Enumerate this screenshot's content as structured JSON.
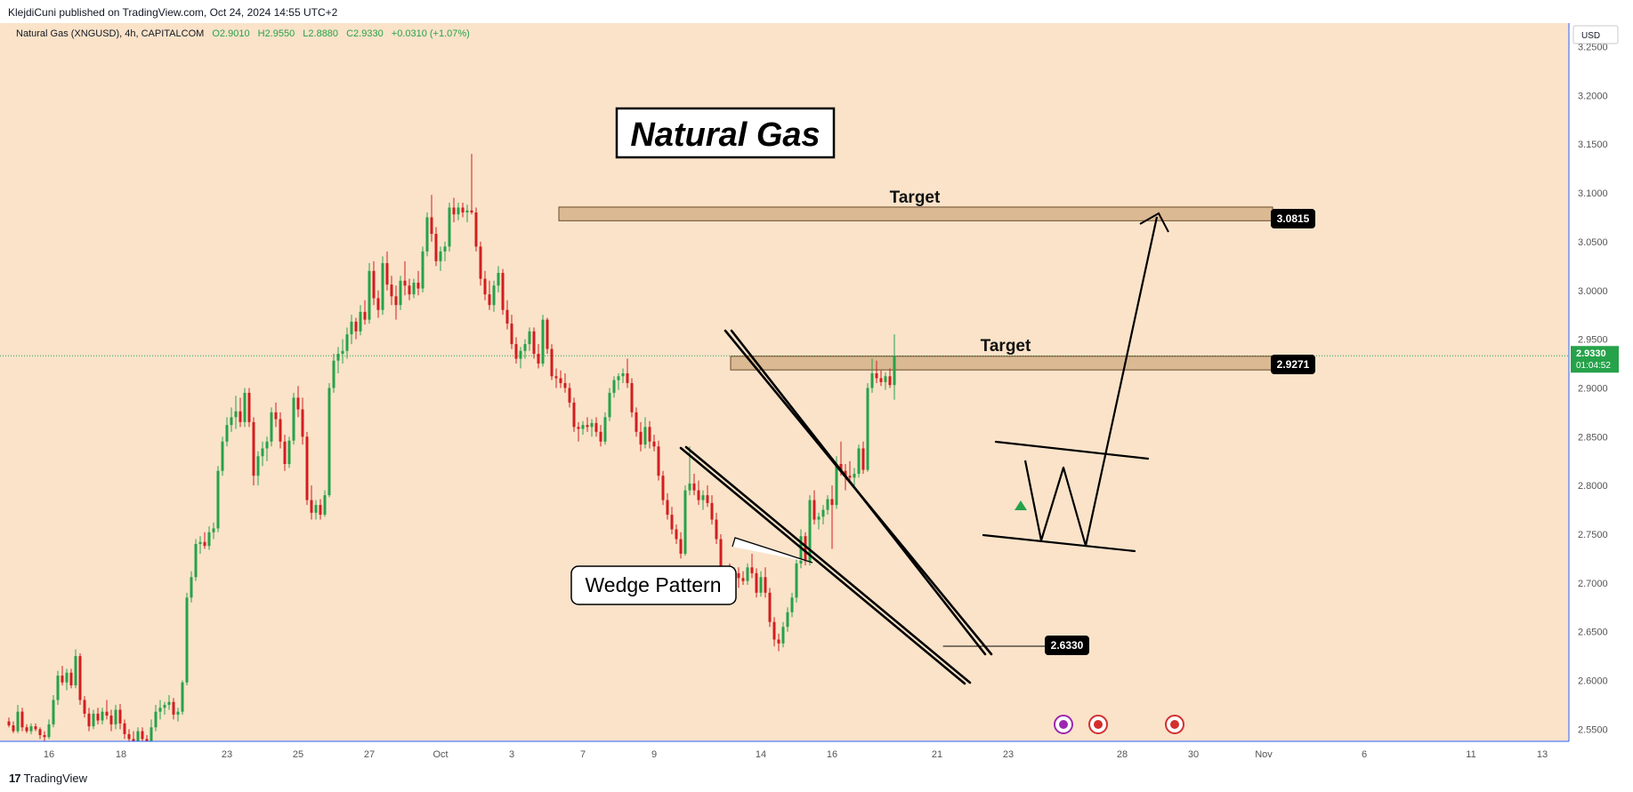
{
  "header": {
    "publisher_line": "KlejdiCuni published on TradingView.com, Oct 24, 2024 14:55 UTC+2"
  },
  "legend": {
    "symbol": "Natural Gas (XNGUSD), 4h, CAPITALCOM",
    "open": "O2.9010",
    "high": "H2.9550",
    "low": "L2.8880",
    "close": "C2.9330",
    "change": "+0.0310 (+1.07%)"
  },
  "currency_button": "USD",
  "footer": {
    "brand": "TradingView",
    "brand_mark": "17"
  },
  "colors": {
    "background": "#fae3c9",
    "up_candle": "#26a24a",
    "down_candle": "#d21e1e",
    "zone_fill": "#d4b18a",
    "axis_line": "#2962ff",
    "price_line": "#26a24a",
    "label_bg": "#000000"
  },
  "chart_data": {
    "type": "candlestick",
    "symbol": "XNGUSD",
    "interval": "4h",
    "title": "Natural Gas",
    "y_axis": {
      "ylim": [
        2.53,
        3.27
      ],
      "ticks": [
        "3.2500",
        "3.2000",
        "3.1500",
        "3.1000",
        "3.0500",
        "3.0000",
        "2.9500",
        "2.9000",
        "2.8500",
        "2.8000",
        "2.7500",
        "2.7000",
        "2.6500",
        "2.6000",
        "2.5500"
      ]
    },
    "x_axis": {
      "ticks": [
        "16",
        "18",
        "23",
        "25",
        "27",
        "Oct",
        "3",
        "7",
        "9",
        "14",
        "16",
        "21",
        "23",
        "28",
        "30",
        "Nov",
        "6",
        "11",
        "13"
      ]
    },
    "current_price": {
      "value": 2.933,
      "label": "2.9330",
      "countdown": "01:04:52"
    },
    "price_labels": [
      {
        "label": "3.0815",
        "value": 3.0815
      },
      {
        "label": "2.9271",
        "value": 2.9271
      },
      {
        "label": "2.6330",
        "value": 2.633
      }
    ],
    "annotations": {
      "title_box": "Natural Gas",
      "target_upper": "Target",
      "target_lower": "Target",
      "pattern_callout": "Wedge Pattern"
    },
    "zones": [
      {
        "name": "upper-target-zone",
        "top": 3.0855,
        "bottom": 3.0715
      },
      {
        "name": "lower-target-zone",
        "top": 2.9325,
        "bottom": 2.9185
      }
    ],
    "candles": [
      [
        2.558,
        2.562,
        2.552,
        2.554
      ],
      [
        2.554,
        2.558,
        2.546,
        2.548
      ],
      [
        2.548,
        2.575,
        2.546,
        2.568
      ],
      [
        2.568,
        2.572,
        2.548,
        2.552
      ],
      [
        2.552,
        2.555,
        2.546,
        2.548
      ],
      [
        2.548,
        2.556,
        2.545,
        2.553
      ],
      [
        2.553,
        2.556,
        2.548,
        2.55
      ],
      [
        2.55,
        2.552,
        2.54,
        2.544
      ],
      [
        2.544,
        2.548,
        2.538,
        2.542
      ],
      [
        2.542,
        2.56,
        2.54,
        2.555
      ],
      [
        2.555,
        2.585,
        2.552,
        2.58
      ],
      [
        2.58,
        2.61,
        2.575,
        2.605
      ],
      [
        2.605,
        2.615,
        2.595,
        2.598
      ],
      [
        2.598,
        2.612,
        2.59,
        2.608
      ],
      [
        2.608,
        2.612,
        2.592,
        2.595
      ],
      [
        2.595,
        2.632,
        2.592,
        2.625
      ],
      [
        2.625,
        2.628,
        2.575,
        2.58
      ],
      [
        2.58,
        2.584,
        2.562,
        2.566
      ],
      [
        2.566,
        2.572,
        2.548,
        2.553
      ],
      [
        2.553,
        2.57,
        2.55,
        2.566
      ],
      [
        2.566,
        2.572,
        2.555,
        2.559
      ],
      [
        2.559,
        2.572,
        2.555,
        2.568
      ],
      [
        2.568,
        2.58,
        2.56,
        2.564
      ],
      [
        2.564,
        2.57,
        2.548,
        2.555
      ],
      [
        2.555,
        2.575,
        2.55,
        2.57
      ],
      [
        2.57,
        2.576,
        2.55,
        2.556
      ],
      [
        2.556,
        2.56,
        2.54,
        2.545
      ],
      [
        2.545,
        2.55,
        2.535,
        2.54
      ],
      [
        2.54,
        2.548,
        2.532,
        2.538
      ],
      [
        2.538,
        2.552,
        2.534,
        2.548
      ],
      [
        2.548,
        2.552,
        2.536,
        2.54
      ],
      [
        2.54,
        2.544,
        2.53,
        2.535
      ],
      [
        2.535,
        2.56,
        2.532,
        2.552
      ],
      [
        2.552,
        2.575,
        2.548,
        2.568
      ],
      [
        2.568,
        2.58,
        2.56,
        2.572
      ],
      [
        2.572,
        2.578,
        2.565,
        2.575
      ],
      [
        2.575,
        2.585,
        2.57,
        2.578
      ],
      [
        2.578,
        2.582,
        2.56,
        2.565
      ],
      [
        2.565,
        2.572,
        2.558,
        2.568
      ],
      [
        2.568,
        2.6,
        2.565,
        2.598
      ],
      [
        2.598,
        2.69,
        2.595,
        2.685
      ],
      [
        2.685,
        2.712,
        2.68,
        2.706
      ],
      [
        2.706,
        2.745,
        2.702,
        2.74
      ],
      [
        2.74,
        2.748,
        2.73,
        2.742
      ],
      [
        2.742,
        2.752,
        2.735,
        2.738
      ],
      [
        2.738,
        2.758,
        2.734,
        2.752
      ],
      [
        2.752,
        2.762,
        2.745,
        2.756
      ],
      [
        2.756,
        2.82,
        2.752,
        2.815
      ],
      [
        2.815,
        2.85,
        2.81,
        2.845
      ],
      [
        2.845,
        2.87,
        2.84,
        2.862
      ],
      [
        2.862,
        2.88,
        2.855,
        2.87
      ],
      [
        2.87,
        2.892,
        2.858,
        2.876
      ],
      [
        2.876,
        2.89,
        2.86,
        2.865
      ],
      [
        2.865,
        2.9,
        2.86,
        2.895
      ],
      [
        2.895,
        2.9,
        2.86,
        2.865
      ],
      [
        2.865,
        2.87,
        2.8,
        2.81
      ],
      [
        2.81,
        2.835,
        2.8,
        2.83
      ],
      [
        2.83,
        2.845,
        2.82,
        2.838
      ],
      [
        2.838,
        2.85,
        2.825,
        2.845
      ],
      [
        2.845,
        2.88,
        2.84,
        2.875
      ],
      [
        2.875,
        2.885,
        2.86,
        2.868
      ],
      [
        2.868,
        2.875,
        2.838,
        2.845
      ],
      [
        2.845,
        2.852,
        2.815,
        2.822
      ],
      [
        2.822,
        2.85,
        2.818,
        2.846
      ],
      [
        2.846,
        2.895,
        2.842,
        2.89
      ],
      [
        2.89,
        2.902,
        2.87,
        2.878
      ],
      [
        2.878,
        2.89,
        2.842,
        2.85
      ],
      [
        2.85,
        2.855,
        2.78,
        2.785
      ],
      [
        2.785,
        2.8,
        2.765,
        2.772
      ],
      [
        2.772,
        2.785,
        2.765,
        2.78
      ],
      [
        2.78,
        2.786,
        2.765,
        2.77
      ],
      [
        2.77,
        2.795,
        2.768,
        2.79
      ],
      [
        2.79,
        2.905,
        2.788,
        2.9
      ],
      [
        2.9,
        2.935,
        2.895,
        2.928
      ],
      [
        2.928,
        2.942,
        2.915,
        2.935
      ],
      [
        2.935,
        2.95,
        2.925,
        2.938
      ],
      [
        2.938,
        2.962,
        2.93,
        2.955
      ],
      [
        2.955,
        2.975,
        2.945,
        2.968
      ],
      [
        2.968,
        2.972,
        2.95,
        2.958
      ],
      [
        2.958,
        2.985,
        2.954,
        2.978
      ],
      [
        2.978,
        2.99,
        2.965,
        2.97
      ],
      [
        2.97,
        3.028,
        2.966,
        3.02
      ],
      [
        3.02,
        3.03,
        2.985,
        2.992
      ],
      [
        2.992,
        3.0,
        2.972,
        2.98
      ],
      [
        2.98,
        3.035,
        2.975,
        3.028
      ],
      [
        3.028,
        3.04,
        3.0,
        3.006
      ],
      [
        3.006,
        3.015,
        2.985,
        2.994
      ],
      [
        2.994,
        3.005,
        2.97,
        2.985
      ],
      [
        2.985,
        3.015,
        2.98,
        3.01
      ],
      [
        3.01,
        3.03,
        2.995,
        3.005
      ],
      [
        3.005,
        3.012,
        2.99,
        2.996
      ],
      [
        2.996,
        3.012,
        2.992,
        3.008
      ],
      [
        3.008,
        3.02,
        2.995,
        3.002
      ],
      [
        3.002,
        3.045,
        2.998,
        3.04
      ],
      [
        3.04,
        3.08,
        3.035,
        3.075
      ],
      [
        3.075,
        3.098,
        3.05,
        3.058
      ],
      [
        3.058,
        3.065,
        3.025,
        3.03
      ],
      [
        3.03,
        3.045,
        3.02,
        3.04
      ],
      [
        3.04,
        3.05,
        3.03,
        3.045
      ],
      [
        3.045,
        3.09,
        3.04,
        3.085
      ],
      [
        3.085,
        3.095,
        3.07,
        3.078
      ],
      [
        3.078,
        3.09,
        3.072,
        3.085
      ],
      [
        3.085,
        3.09,
        3.075,
        3.08
      ],
      [
        3.08,
        3.088,
        3.07,
        3.082
      ],
      [
        3.082,
        3.14,
        3.078,
        3.08
      ],
      [
        3.08,
        3.085,
        3.04,
        3.045
      ],
      [
        3.045,
        3.05,
        3.005,
        3.012
      ],
      [
        3.012,
        3.02,
        2.99,
        2.996
      ],
      [
        2.996,
        3.01,
        2.98,
        2.985
      ],
      [
        2.985,
        3.01,
        2.978,
        3.005
      ],
      [
        3.005,
        3.025,
        2.998,
        3.018
      ],
      [
        3.018,
        3.022,
        2.975,
        2.98
      ],
      [
        2.98,
        2.99,
        2.96,
        2.966
      ],
      [
        2.966,
        2.975,
        2.94,
        2.945
      ],
      [
        2.945,
        2.952,
        2.925,
        2.93
      ],
      [
        2.93,
        2.942,
        2.92,
        2.938
      ],
      [
        2.938,
        2.95,
        2.93,
        2.945
      ],
      [
        2.945,
        2.962,
        2.938,
        2.958
      ],
      [
        2.958,
        2.962,
        2.93,
        2.935
      ],
      [
        2.935,
        2.945,
        2.92,
        2.925
      ],
      [
        2.925,
        2.975,
        2.922,
        2.97
      ],
      [
        2.97,
        2.972,
        2.935,
        2.94
      ],
      [
        2.94,
        2.945,
        2.908,
        2.912
      ],
      [
        2.912,
        2.92,
        2.9,
        2.91
      ],
      [
        2.91,
        2.918,
        2.9,
        2.905
      ],
      [
        2.905,
        2.915,
        2.895,
        2.9
      ],
      [
        2.9,
        2.905,
        2.88,
        2.885
      ],
      [
        2.885,
        2.89,
        2.855,
        2.86
      ],
      [
        2.86,
        2.865,
        2.845,
        2.858
      ],
      [
        2.858,
        2.866,
        2.852,
        2.862
      ],
      [
        2.862,
        2.87,
        2.855,
        2.86
      ],
      [
        2.86,
        2.868,
        2.85,
        2.864
      ],
      [
        2.864,
        2.87,
        2.85,
        2.855
      ],
      [
        2.855,
        2.862,
        2.84,
        2.845
      ],
      [
        2.845,
        2.875,
        2.842,
        2.87
      ],
      [
        2.87,
        2.9,
        2.866,
        2.895
      ],
      [
        2.895,
        2.912,
        2.89,
        2.908
      ],
      [
        2.908,
        2.915,
        2.898,
        2.912
      ],
      [
        2.912,
        2.92,
        2.905,
        2.915
      ],
      [
        2.915,
        2.93,
        2.9,
        2.905
      ],
      [
        2.905,
        2.91,
        2.87,
        2.875
      ],
      [
        2.875,
        2.88,
        2.85,
        2.855
      ],
      [
        2.855,
        2.865,
        2.835,
        2.842
      ],
      [
        2.842,
        2.87,
        2.838,
        2.86
      ],
      [
        2.86,
        2.866,
        2.838,
        2.845
      ],
      [
        2.845,
        2.852,
        2.835,
        2.84
      ],
      [
        2.84,
        2.846,
        2.805,
        2.81
      ],
      [
        2.81,
        2.815,
        2.78,
        2.785
      ],
      [
        2.785,
        2.792,
        2.765,
        2.77
      ],
      [
        2.77,
        2.778,
        2.75,
        2.755
      ],
      [
        2.755,
        2.76,
        2.74,
        2.745
      ],
      [
        2.745,
        2.752,
        2.725,
        2.73
      ],
      [
        2.73,
        2.8,
        2.728,
        2.795
      ],
      [
        2.795,
        2.84,
        2.79,
        2.802
      ],
      [
        2.802,
        2.812,
        2.79,
        2.795
      ],
      [
        2.795,
        2.805,
        2.78,
        2.785
      ],
      [
        2.785,
        2.795,
        2.775,
        2.79
      ],
      [
        2.79,
        2.8,
        2.778,
        2.782
      ],
      [
        2.782,
        2.79,
        2.76,
        2.765
      ],
      [
        2.765,
        2.772,
        2.74,
        2.745
      ],
      [
        2.745,
        2.75,
        2.7,
        2.706
      ],
      [
        2.706,
        2.716,
        2.698,
        2.712
      ],
      [
        2.712,
        2.72,
        2.702,
        2.708
      ],
      [
        2.708,
        2.716,
        2.7,
        2.71
      ],
      [
        2.71,
        2.716,
        2.695,
        2.705
      ],
      [
        2.705,
        2.712,
        2.698,
        2.702
      ],
      [
        2.702,
        2.72,
        2.698,
        2.716
      ],
      [
        2.716,
        2.73,
        2.705,
        2.71
      ],
      [
        2.71,
        2.715,
        2.685,
        2.69
      ],
      [
        2.69,
        2.712,
        2.686,
        2.706
      ],
      [
        2.706,
        2.716,
        2.685,
        2.69
      ],
      [
        2.69,
        2.695,
        2.655,
        2.66
      ],
      [
        2.66,
        2.665,
        2.635,
        2.642
      ],
      [
        2.642,
        2.648,
        2.63,
        2.638
      ],
      [
        2.638,
        2.66,
        2.634,
        2.655
      ],
      [
        2.655,
        2.675,
        2.65,
        2.67
      ],
      [
        2.67,
        2.69,
        2.665,
        2.685
      ],
      [
        2.685,
        2.725,
        2.68,
        2.72
      ],
      [
        2.72,
        2.755,
        2.715,
        2.748
      ],
      [
        2.748,
        2.752,
        2.718,
        2.722
      ],
      [
        2.722,
        2.79,
        2.718,
        2.785
      ],
      [
        2.785,
        2.795,
        2.76,
        2.765
      ],
      [
        2.765,
        2.772,
        2.755,
        2.768
      ],
      [
        2.768,
        2.78,
        2.76,
        2.775
      ],
      [
        2.775,
        2.79,
        2.77,
        2.786
      ],
      [
        2.786,
        2.8,
        2.735,
        2.78
      ],
      [
        2.78,
        2.83,
        2.776,
        2.822
      ],
      [
        2.822,
        2.845,
        2.81,
        2.815
      ],
      [
        2.815,
        2.822,
        2.795,
        2.81
      ],
      [
        2.81,
        2.825,
        2.802,
        2.808
      ],
      [
        2.808,
        2.818,
        2.8,
        2.812
      ],
      [
        2.812,
        2.842,
        2.808,
        2.838
      ],
      [
        2.838,
        2.845,
        2.812,
        2.816
      ],
      [
        2.816,
        2.905,
        2.814,
        2.9
      ],
      [
        2.9,
        2.93,
        2.895,
        2.915
      ],
      [
        2.915,
        2.928,
        2.905,
        2.91
      ],
      [
        2.91,
        2.918,
        2.902,
        2.906
      ],
      [
        2.906,
        2.916,
        2.898,
        2.912
      ],
      [
        2.912,
        2.92,
        2.9,
        2.903
      ],
      [
        2.903,
        2.955,
        2.888,
        2.933
      ]
    ]
  }
}
